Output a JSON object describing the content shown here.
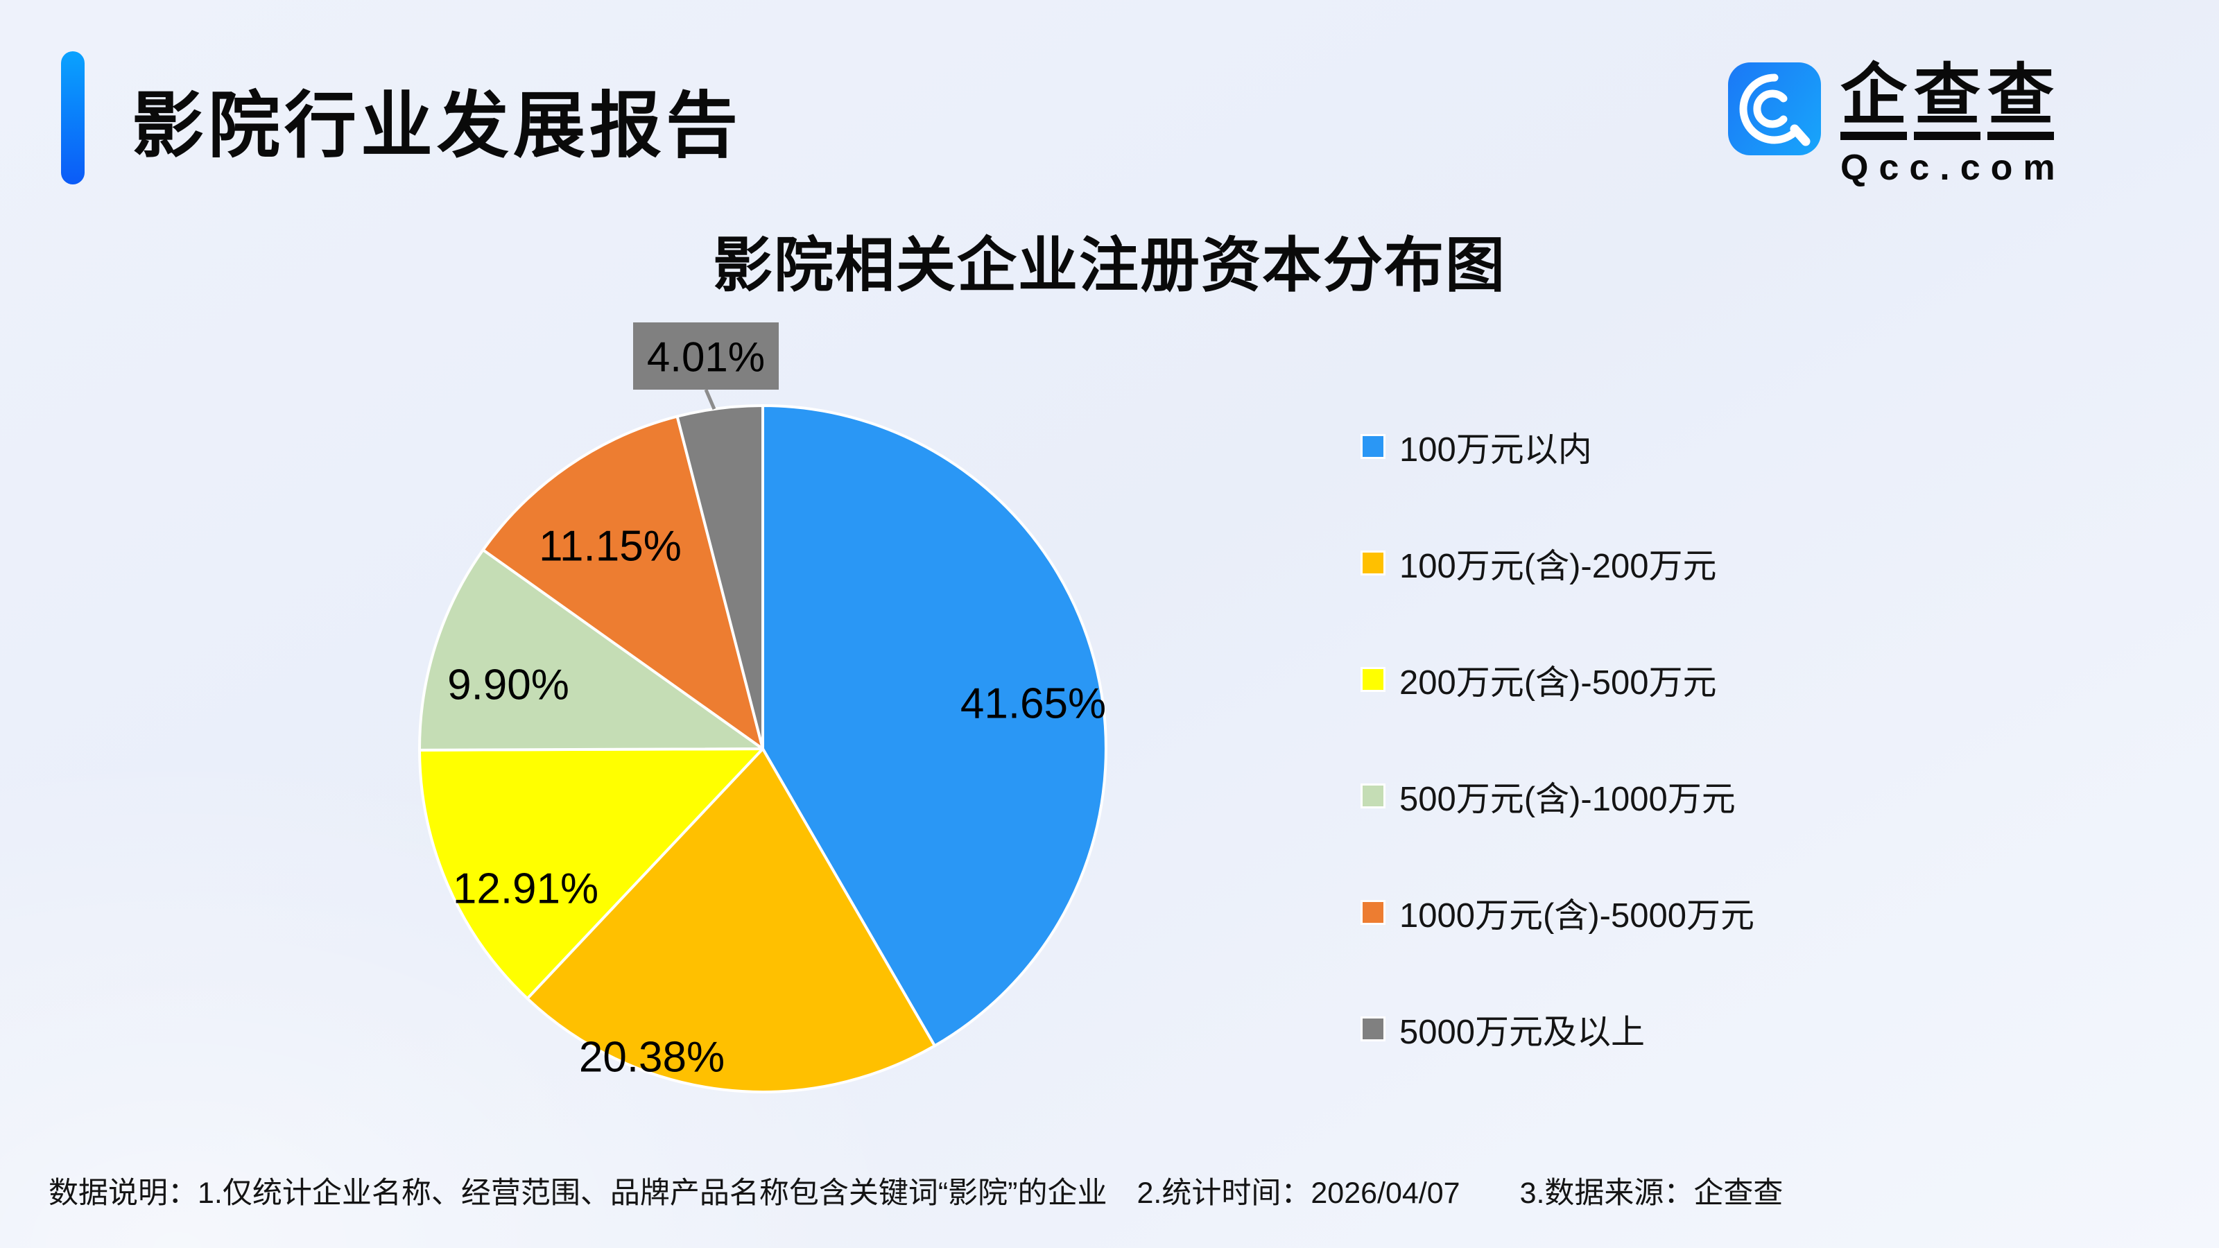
{
  "header": {
    "title": "影院行业发展报告",
    "accent_color_top": "#0aa2fe",
    "accent_color_bottom": "#0b5bf7"
  },
  "logo": {
    "brand_chars": [
      "企",
      "查",
      "查"
    ],
    "domain": "Qcc.com",
    "icon_color_start": "#1b78f6",
    "icon_color_end": "#18a6fb"
  },
  "chart_data": {
    "type": "pie",
    "title": "影院相关企业注册资本分布图",
    "categories": [
      "100万元以内",
      "100万元(含)-200万元",
      "200万元(含)-500万元",
      "500万元(含)-1000万元",
      "1000万元(含)-5000万元",
      "5000万元及以上"
    ],
    "values": [
      41.65,
      20.38,
      12.91,
      9.9,
      11.15,
      4.01
    ],
    "labels": [
      "41.65%",
      "20.38%",
      "12.91%",
      "9.90%",
      "11.15%",
      "4.01%"
    ],
    "colors": [
      "#2a97f5",
      "#ffc000",
      "#ffff00",
      "#c5ddb5",
      "#ed7d31",
      "#808080"
    ],
    "start_angle_deg": 0,
    "direction": "clockwise",
    "slice_border_color": "#ffffff",
    "legend_position": "right",
    "callout": {
      "index": 5,
      "box_color": "#808080",
      "text_color": "#000000"
    }
  },
  "footer": {
    "note": "数据说明：1.仅统计企业名称、经营范围、品牌产品名称包含关键词“影院”的企业　2.统计时间：2026/04/07　　3.数据来源：企查查"
  }
}
